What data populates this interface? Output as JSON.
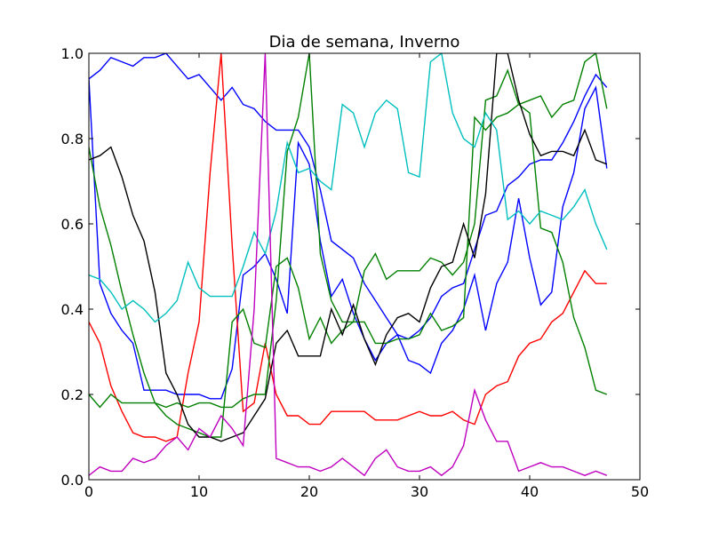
{
  "chart_data": {
    "type": "line",
    "title": "Dia de semana, Inverno",
    "xlabel": "",
    "ylabel": "",
    "xlim": [
      0,
      50
    ],
    "ylim": [
      0.0,
      1.0
    ],
    "xticks": [
      0,
      10,
      20,
      30,
      40,
      50
    ],
    "yticks": [
      0.0,
      0.2,
      0.4,
      0.6,
      0.8,
      1.0
    ],
    "xtick_labels": [
      "0",
      "10",
      "20",
      "30",
      "40",
      "50"
    ],
    "ytick_labels": [
      "0.0",
      "0.2",
      "0.4",
      "0.6",
      "0.8",
      "1.0"
    ],
    "grid": false,
    "legend": "none",
    "series": [
      {
        "color": "#0000ff",
        "values": [
          0.94,
          0.96,
          0.99,
          0.98,
          0.97,
          0.99,
          0.99,
          1.0,
          0.97,
          0.94,
          0.95,
          0.92,
          0.89,
          0.92,
          0.88,
          0.87,
          0.84,
          0.82,
          0.82,
          0.82,
          0.78,
          0.68,
          0.56,
          0.54,
          0.52,
          0.46,
          0.42,
          0.38,
          0.34,
          0.33,
          0.35,
          0.38,
          0.43,
          0.45,
          0.46,
          0.54,
          0.62,
          0.63,
          0.69,
          0.71,
          0.74,
          0.75,
          0.75,
          0.79,
          0.84,
          0.9,
          0.95,
          0.92
        ]
      },
      {
        "color": "#0000ff",
        "values": [
          0.94,
          0.46,
          0.39,
          0.35,
          0.32,
          0.21,
          0.21,
          0.21,
          0.2,
          0.2,
          0.2,
          0.19,
          0.19,
          0.26,
          0.48,
          0.5,
          0.53,
          0.47,
          0.39,
          0.79,
          0.74,
          0.56,
          0.43,
          0.47,
          0.39,
          0.33,
          0.28,
          0.32,
          0.34,
          0.28,
          0.27,
          0.25,
          0.32,
          0.35,
          0.4,
          0.48,
          0.35,
          0.46,
          0.51,
          0.66,
          0.52,
          0.41,
          0.44,
          0.64,
          0.72,
          0.87,
          0.92,
          0.73
        ]
      },
      {
        "color": "#ff0000",
        "values": [
          0.37,
          0.32,
          0.22,
          0.16,
          0.11,
          0.1,
          0.1,
          0.09,
          0.1,
          0.25,
          0.37,
          0.72,
          1.0,
          0.55,
          0.16,
          0.18,
          0.32,
          0.2,
          0.15,
          0.15,
          0.13,
          0.13,
          0.16,
          0.16,
          0.16,
          0.16,
          0.14,
          0.14,
          0.14,
          0.15,
          0.16,
          0.15,
          0.15,
          0.16,
          0.14,
          0.13,
          0.2,
          0.22,
          0.23,
          0.29,
          0.32,
          0.33,
          0.37,
          0.39,
          0.44,
          0.49,
          0.46,
          0.46
        ]
      },
      {
        "color": "#008000",
        "values": [
          0.78,
          0.64,
          0.55,
          0.44,
          0.34,
          0.25,
          0.18,
          0.15,
          0.13,
          0.12,
          0.11,
          0.1,
          0.1,
          0.37,
          0.4,
          0.32,
          0.31,
          0.5,
          0.52,
          0.45,
          0.33,
          0.38,
          0.32,
          0.35,
          0.37,
          0.49,
          0.53,
          0.47,
          0.49,
          0.49,
          0.49,
          0.52,
          0.51,
          0.48,
          0.51,
          0.6,
          0.89,
          0.9,
          0.96,
          0.88,
          0.86,
          0.59,
          0.58,
          0.51,
          0.38,
          0.31,
          0.21,
          0.2
        ]
      },
      {
        "color": "#008000",
        "values": [
          0.2,
          0.17,
          0.2,
          0.18,
          0.18,
          0.18,
          0.18,
          0.17,
          0.18,
          0.17,
          0.18,
          0.18,
          0.17,
          0.17,
          0.19,
          0.2,
          0.2,
          0.42,
          0.77,
          0.85,
          1.0,
          0.53,
          0.42,
          0.37,
          0.37,
          0.37,
          0.32,
          0.32,
          0.33,
          0.33,
          0.34,
          0.39,
          0.35,
          0.36,
          0.38,
          0.85,
          0.82,
          0.85,
          0.86,
          0.88,
          0.89,
          0.9,
          0.85,
          0.88,
          0.89,
          0.98,
          1.0,
          0.87
        ]
      },
      {
        "color": "#000000",
        "values": [
          0.75,
          0.76,
          0.78,
          0.71,
          0.62,
          0.56,
          0.44,
          0.25,
          0.2,
          0.13,
          0.1,
          0.1,
          0.09,
          0.1,
          0.11,
          0.15,
          0.19,
          0.32,
          0.35,
          0.29,
          0.29,
          0.29,
          0.4,
          0.34,
          0.41,
          0.33,
          0.27,
          0.34,
          0.38,
          0.39,
          0.37,
          0.45,
          0.5,
          0.51,
          0.6,
          0.52,
          0.67,
          1.0,
          1.0,
          0.89,
          0.81,
          0.76,
          0.77,
          0.77,
          0.76,
          0.82,
          0.75,
          0.74
        ]
      },
      {
        "color": "#00bfbf",
        "values": [
          0.48,
          0.47,
          0.44,
          0.4,
          0.42,
          0.4,
          0.37,
          0.39,
          0.42,
          0.51,
          0.45,
          0.43,
          0.43,
          0.43,
          0.5,
          0.58,
          0.53,
          0.63,
          0.79,
          0.72,
          0.73,
          0.7,
          0.68,
          0.88,
          0.86,
          0.78,
          0.86,
          0.89,
          0.87,
          0.72,
          0.71,
          0.98,
          1.0,
          0.86,
          0.8,
          0.78,
          0.86,
          0.82,
          0.61,
          0.63,
          0.6,
          0.63,
          0.62,
          0.61,
          0.64,
          0.68,
          0.6,
          0.54
        ]
      },
      {
        "color": "#bf00bf",
        "values": [
          0.01,
          0.03,
          0.02,
          0.02,
          0.05,
          0.04,
          0.05,
          0.08,
          0.1,
          0.07,
          0.12,
          0.1,
          0.15,
          0.12,
          0.08,
          0.4,
          1.0,
          0.05,
          0.04,
          0.03,
          0.03,
          0.02,
          0.03,
          0.05,
          0.03,
          0.01,
          0.05,
          0.07,
          0.03,
          0.02,
          0.02,
          0.03,
          0.01,
          0.03,
          0.08,
          0.21,
          0.14,
          0.09,
          0.09,
          0.02,
          0.03,
          0.04,
          0.03,
          0.03,
          0.02,
          0.01,
          0.02,
          0.01
        ]
      }
    ]
  }
}
